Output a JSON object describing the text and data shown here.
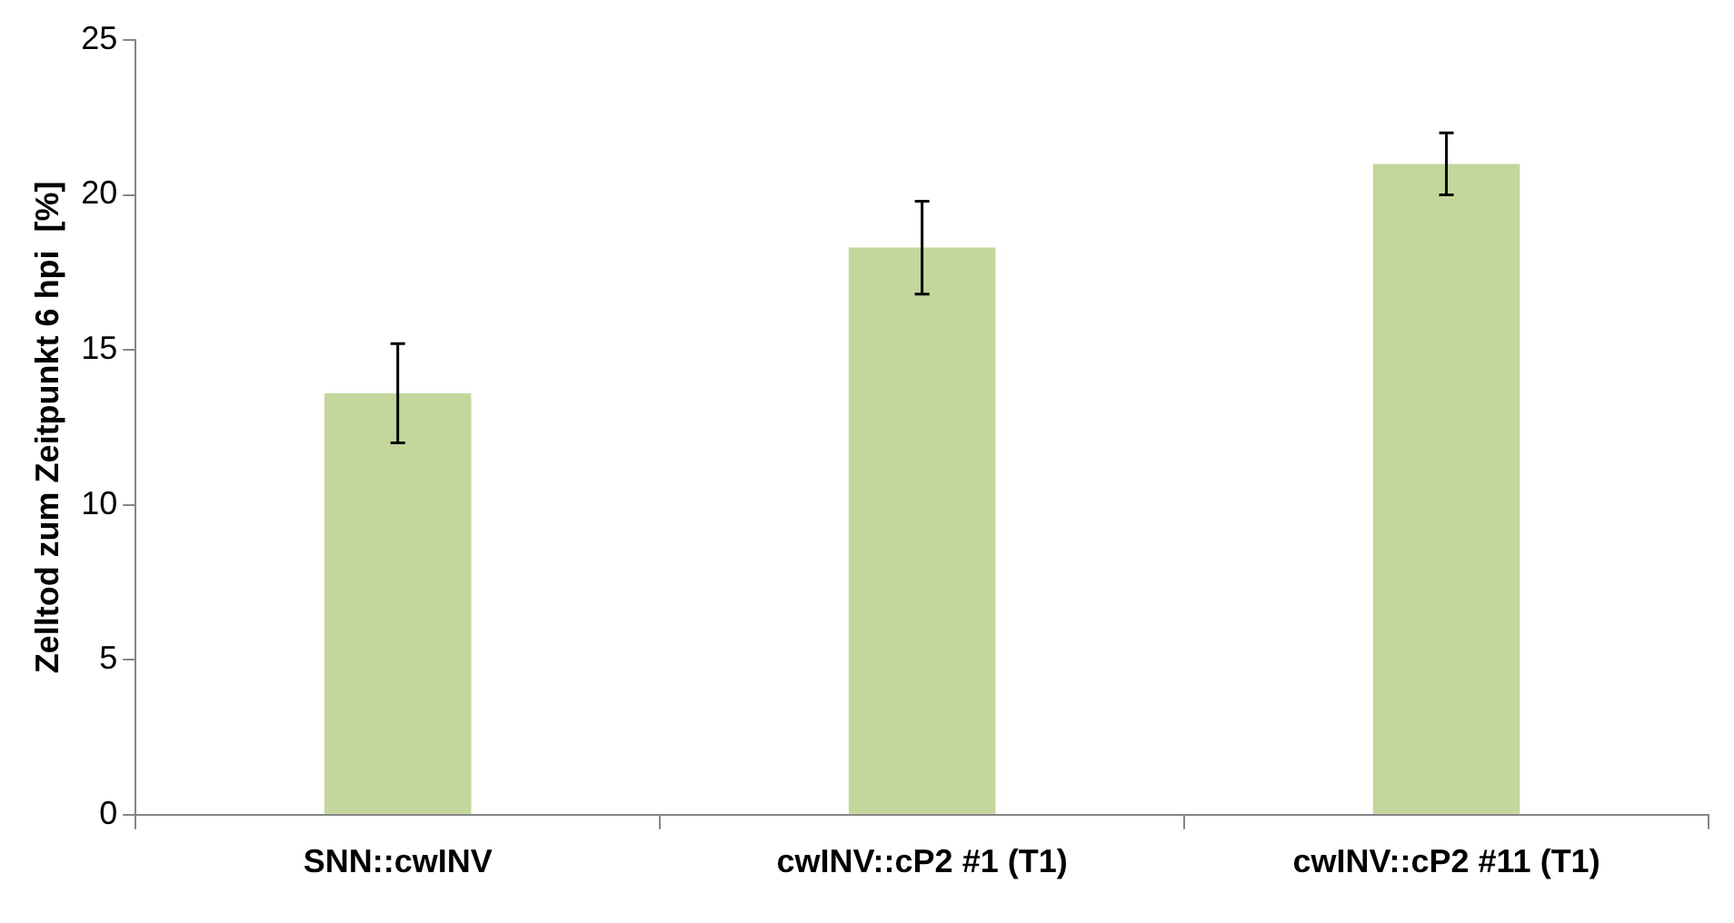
{
  "chart_data": {
    "type": "bar",
    "ylabel": "Zelltod zum Zeitpunkt 6 hpi  [%]",
    "categories": [
      "SNN::cwINV",
      "cwINV::cP2 #1 (T1)",
      "cwINV::cP2 #11 (T1)"
    ],
    "values": [
      13.6,
      18.3,
      21.0
    ],
    "errors": [
      1.6,
      1.5,
      1.0
    ],
    "color": "#c3d69b",
    "ylim": [
      0,
      25
    ],
    "yticks": [
      0,
      5,
      10,
      15,
      20,
      25
    ],
    "grid": false,
    "legend": false
  }
}
